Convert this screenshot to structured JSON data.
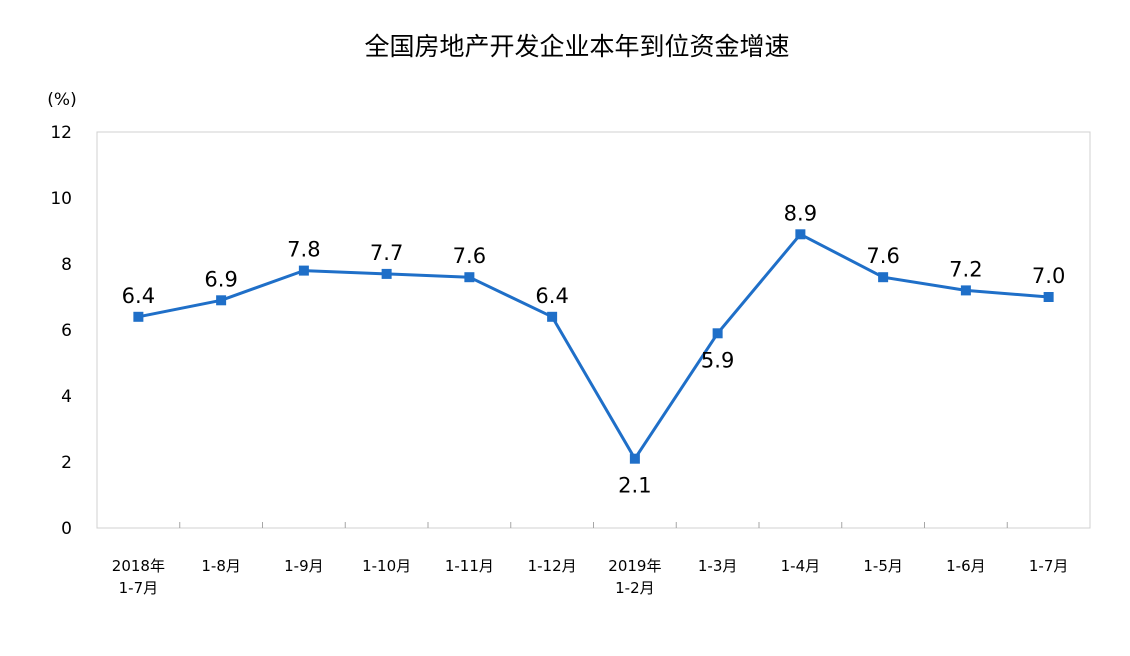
{
  "chart_data": {
    "type": "line",
    "title": "全国房地产开发企业本年到位资金增速",
    "ylabel": "(%)",
    "xlabel": "",
    "ylim": [
      0,
      12
    ],
    "yticks": [
      0,
      2,
      4,
      6,
      8,
      10,
      12
    ],
    "grid": false,
    "legend": "none",
    "categories": [
      "2018年\n1-7月",
      "1-8月",
      "1-9月",
      "1-10月",
      "1-11月",
      "1-12月",
      "2019年\n1-2月",
      "1-3月",
      "1-4月",
      "1-5月",
      "1-6月",
      "1-7月"
    ],
    "values": [
      6.4,
      6.9,
      7.8,
      7.7,
      7.6,
      6.4,
      2.1,
      5.9,
      8.9,
      7.6,
      7.2,
      7.0
    ],
    "data_labels": [
      "6.4",
      "6.9",
      "7.8",
      "7.7",
      "7.6",
      "6.4",
      "2.1",
      "5.9",
      "8.9",
      "7.6",
      "7.2",
      "7.0"
    ],
    "line_color": "#1f6fc8",
    "axis_color": "#a6a6a6"
  }
}
